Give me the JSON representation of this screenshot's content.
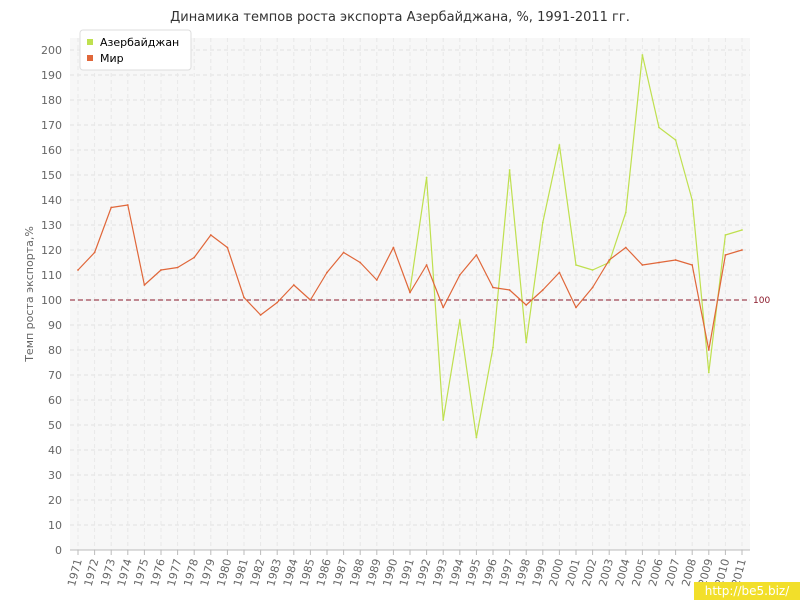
{
  "chart_data": {
    "type": "line",
    "title": "Динамика темпов роста экспорта Азербайджана, %, 1991-2011 гг.",
    "ylabel": "Темп роста экспорта,%",
    "xlabel": "",
    "ylim": [
      0,
      200
    ],
    "ytick_step": 10,
    "grid": true,
    "legend_position": "top-left",
    "categories": [
      "1971",
      "1972",
      "1973",
      "1974",
      "1975",
      "1976",
      "1977",
      "1978",
      "1979",
      "1980",
      "1981",
      "1982",
      "1983",
      "1984",
      "1985",
      "1986",
      "1987",
      "1988",
      "1989",
      "1990",
      "1991",
      "1992",
      "1993",
      "1994",
      "1995",
      "1996",
      "1997",
      "1998",
      "1999",
      "2000",
      "2001",
      "2002",
      "2003",
      "2004",
      "2005",
      "2006",
      "2007",
      "2008",
      "2009",
      "2010",
      "2011"
    ],
    "series": [
      {
        "name": "Азербайджан",
        "color": "#bfe04f",
        "values": [
          null,
          null,
          null,
          null,
          null,
          null,
          null,
          null,
          null,
          null,
          null,
          null,
          null,
          null,
          null,
          null,
          null,
          null,
          null,
          null,
          104,
          149,
          52,
          92,
          45,
          81,
          152,
          83,
          131,
          162,
          114,
          112,
          115,
          135,
          198,
          169,
          164,
          140,
          71,
          126,
          128
        ]
      },
      {
        "name": "Мир",
        "color": "#e0673a",
        "values": [
          112,
          119,
          137,
          138,
          106,
          112,
          113,
          117,
          126,
          121,
          101,
          94,
          99,
          106,
          100,
          111,
          119,
          115,
          108,
          121,
          103,
          114,
          97,
          110,
          118,
          105,
          104,
          98,
          104,
          111,
          97,
          105,
          116,
          121,
          114,
          115,
          116,
          114,
          80,
          118,
          120
        ]
      }
    ],
    "reference_line": {
      "value": 100,
      "label": "100",
      "color": "#8b1a2b"
    }
  },
  "watermark": "http://be5.biz/"
}
